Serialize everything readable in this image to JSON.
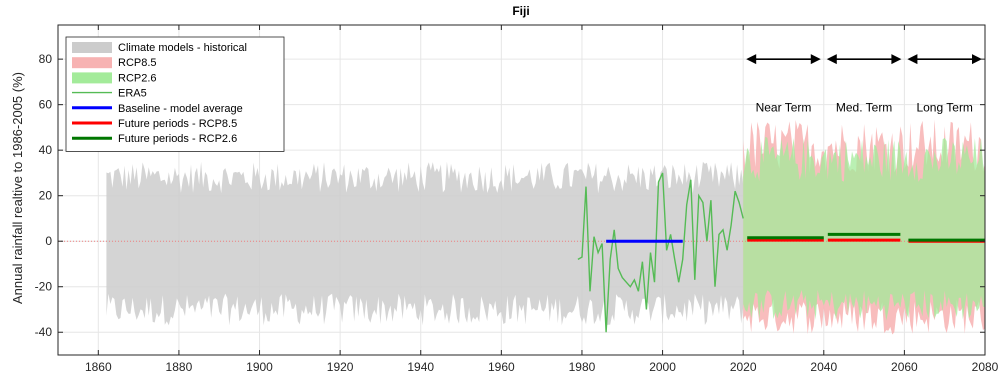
{
  "chart_data": {
    "type": "area",
    "title": "Fiji",
    "xlabel": "",
    "ylabel": "Annual rainfall realtive to 1986-2005 (%)",
    "xlim": [
      1850,
      2080
    ],
    "ylim": [
      -50,
      95
    ],
    "x_ticks": [
      1860,
      1880,
      1900,
      1920,
      1940,
      1960,
      1980,
      2000,
      2020,
      2040,
      2060,
      2080
    ],
    "y_ticks": [
      -40,
      -20,
      0,
      20,
      40,
      60,
      80
    ],
    "grid": true,
    "zero_line": {
      "y": 0,
      "color": "#f08080",
      "style": "dotted"
    },
    "legend_position": "top-left",
    "legend": [
      {
        "label": "Climate models - historical",
        "kind": "patch",
        "color": "#cccccc"
      },
      {
        "label": "RCP8.5",
        "kind": "patch",
        "color": "#f7b2b2"
      },
      {
        "label": "RCP2.6",
        "kind": "patch",
        "color": "#a3eb9a"
      },
      {
        "label": "ERA5",
        "kind": "line",
        "color": "#55bb55"
      },
      {
        "label": "Baseline - model average",
        "kind": "line",
        "color": "#0000ff"
      },
      {
        "label": "Future periods - RCP8.5",
        "kind": "line",
        "color": "#ff0000"
      },
      {
        "label": "Future periods - RCP2.6",
        "kind": "line",
        "color": "#007700"
      }
    ],
    "historical_range": {
      "start": 1862,
      "end": 2020,
      "upper_mean": 28,
      "upper_amp": 7,
      "lower_mean": -30,
      "lower_amp": 7
    },
    "rcp85_range": {
      "start": 2020,
      "end": 2080,
      "upper_mean": 42,
      "upper_amp": 12,
      "lower_mean": -33,
      "lower_amp": 8
    },
    "rcp26_range": {
      "start": 2020,
      "end": 2080,
      "upper_mean": 36,
      "upper_amp": 10,
      "lower_mean": -28,
      "lower_amp": 7
    },
    "era5": {
      "x": [
        1979,
        1980,
        1981,
        1982,
        1983,
        1984,
        1985,
        1986,
        1987,
        1988,
        1989,
        1990,
        1991,
        1992,
        1993,
        1994,
        1995,
        1996,
        1997,
        1998,
        1999,
        2000,
        2001,
        2002,
        2003,
        2004,
        2005,
        2006,
        2007,
        2008,
        2009,
        2010,
        2011,
        2012,
        2013,
        2014,
        2015,
        2016,
        2017,
        2018,
        2019,
        2020
      ],
      "y": [
        -8,
        -7,
        24,
        -22,
        2,
        -5,
        -1,
        -40,
        -8,
        5,
        -12,
        -16,
        -18,
        -20,
        -17,
        -22,
        -9,
        -30,
        -5,
        -18,
        26,
        30,
        -4,
        3,
        -8,
        -18,
        -8,
        16,
        27,
        -17,
        20,
        17,
        0,
        18,
        -20,
        3,
        5,
        -4,
        7,
        22,
        17,
        10
      ]
    },
    "baseline": {
      "x": [
        1986,
        2005
      ],
      "y": 0
    },
    "future_rcp85": [
      {
        "x": [
          2021,
          2040
        ],
        "y": 0.5
      },
      {
        "x": [
          2041,
          2059
        ],
        "y": 0.5
      },
      {
        "x": [
          2061,
          2080
        ],
        "y": 0
      }
    ],
    "future_rcp26": [
      {
        "x": [
          2021,
          2040
        ],
        "y": 1.5
      },
      {
        "x": [
          2041,
          2059
        ],
        "y": 3
      },
      {
        "x": [
          2061,
          2080
        ],
        "y": 0.5
      }
    ],
    "periods": [
      {
        "label": "Near Term",
        "x": [
          2020,
          2040
        ]
      },
      {
        "label": "Med. Term",
        "x": [
          2040,
          2060
        ]
      },
      {
        "label": "Long Term",
        "x": [
          2060,
          2080
        ]
      }
    ]
  }
}
